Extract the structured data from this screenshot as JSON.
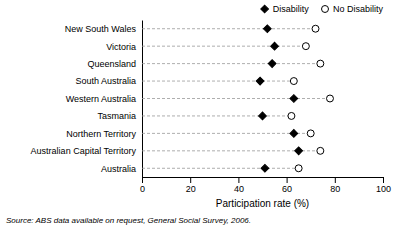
{
  "chart_data": {
    "type": "dot",
    "orientation": "horizontal",
    "xlabel": "Participation rate (%)",
    "annotations": [
      "Source: ABS data available on request, General Social Survey, 2006."
    ],
    "categories": [
      "New South Wales",
      "Victoria",
      "Queensland",
      "South Australia",
      "Western Australia",
      "Tasmania",
      "Northern Territory",
      "Australian Capital Territory",
      "Australia"
    ],
    "series": [
      {
        "name": "Disability",
        "color": "black",
        "marker": "diamond",
        "values": [
          52,
          55,
          54,
          49,
          63,
          50,
          63,
          65,
          51
        ]
      },
      {
        "name": "No Disability",
        "color": "white",
        "marker": "circle",
        "values": [
          72,
          68,
          74,
          63,
          78,
          62,
          70,
          74,
          65
        ]
      }
    ],
    "xlim": [
      0,
      100
    ],
    "xticks": [
      0,
      20,
      40,
      60,
      80,
      100
    ],
    "grid": false,
    "legend": "upper right"
  }
}
